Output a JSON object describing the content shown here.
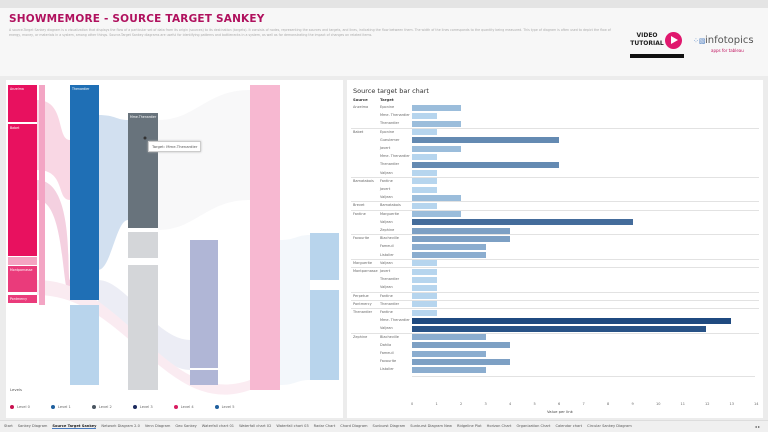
{
  "header": {
    "title": "SHOWMEMORE - SOURCE TARGET SANKEY",
    "description": "A source-Target Sankey diagram is a visualization that displays the flow of a particular set of data from its origin (sources) to its destination (targets). It consists of nodes, representing the sources and targets, and lines, indicating the flow between them. The width of the lines corresponds to the quantity being measured. This type of diagram is often used to depict the flow of energy, money, or materials in a system, among other things. Source-Target Sankey diagrams are useful for identifying patterns and bottlenecks in a system, as well as for demonstrating the impact of changes on related items.",
    "video_label_1": "VIDEO",
    "video_label_2": "TUTORIAL",
    "brand_name": "infotopics",
    "brand_tagline": "apps for tableau"
  },
  "sankey": {
    "nodes": [
      {
        "label": "Anzelma",
        "level": 0
      },
      {
        "label": "Babet",
        "level": 0
      },
      {
        "label": "Montparnasse",
        "level": 0
      },
      {
        "label": "Pontmercy",
        "level": 0
      },
      {
        "label": "Thenardier",
        "level": 1
      },
      {
        "label": "Mme.Thenardier",
        "level": 2
      }
    ],
    "tooltip": "Target: Mme.Thenardier",
    "legend": {
      "title": "Levels",
      "items": [
        {
          "label": "Level 0",
          "color": "#c8114f"
        },
        {
          "label": "Level 1",
          "color": "#1f5f9e"
        },
        {
          "label": "Level 2",
          "color": "#4a5560"
        },
        {
          "label": "Level 3",
          "color": "#1b2a5e"
        },
        {
          "label": "Level 4",
          "color": "#d81b60"
        },
        {
          "label": "Level 5",
          "color": "#1f5f9e"
        }
      ]
    }
  },
  "chart_data": {
    "type": "bar",
    "title": "Source target bar chart",
    "orientation": "horizontal",
    "columns": [
      "Source",
      "Target"
    ],
    "xlabel": "Value per link",
    "xlim": [
      0,
      14
    ],
    "ticks": [
      "0",
      "1",
      "2",
      "3",
      "4",
      "5",
      "6",
      "7",
      "8",
      "9",
      "10",
      "11",
      "12",
      "13",
      "14"
    ],
    "groups": [
      {
        "source": "Anzelma",
        "rows": [
          [
            "Eponine",
            2
          ],
          [
            "Mme. Thenardier",
            1
          ],
          [
            "Thenardier",
            2
          ]
        ]
      },
      {
        "source": "Babet",
        "rows": [
          [
            "Eponine",
            1
          ],
          [
            "Gueulemer",
            6
          ],
          [
            "Javert",
            2
          ],
          [
            "Mme. Thenardier",
            1
          ],
          [
            "Thenardier",
            6
          ],
          [
            "Valjean",
            1
          ]
        ]
      },
      {
        "source": "Bamatabois",
        "rows": [
          [
            "Fantine",
            1
          ],
          [
            "Javert",
            1
          ],
          [
            "Valjean",
            2
          ]
        ]
      },
      {
        "source": "Brevet",
        "rows": [
          [
            "Bamatabois",
            1
          ]
        ]
      },
      {
        "source": "Fantine",
        "rows": [
          [
            "Marguerite",
            2
          ],
          [
            "Valjean",
            9
          ],
          [
            "Zephine",
            4
          ]
        ]
      },
      {
        "source": "Favourite",
        "rows": [
          [
            "Blacheville",
            4
          ],
          [
            "Fameuil",
            3
          ],
          [
            "Listolier",
            3
          ]
        ]
      },
      {
        "source": "Marguerite",
        "rows": [
          [
            "Valjean",
            1
          ]
        ]
      },
      {
        "source": "Montparnasse",
        "rows": [
          [
            "Javert",
            1
          ],
          [
            "Thenardier",
            1
          ],
          [
            "Valjean",
            1
          ]
        ]
      },
      {
        "source": "Perpetue",
        "rows": [
          [
            "Fantine",
            1
          ]
        ]
      },
      {
        "source": "Pontmercy",
        "rows": [
          [
            "Thenardier",
            1
          ]
        ]
      },
      {
        "source": "Thenardier",
        "rows": [
          [
            "Fantine",
            1
          ],
          [
            "Mme. Thenardier",
            13
          ],
          [
            "Valjean",
            12
          ]
        ]
      },
      {
        "source": "Zephine",
        "rows": [
          [
            "Blacheville",
            3
          ],
          [
            "Dahlia",
            4
          ],
          [
            "Fameuil",
            3
          ],
          [
            "Favourite",
            4
          ],
          [
            "Listolier",
            3
          ]
        ]
      }
    ],
    "color_scale": [
      "#b6d5ee",
      "#1f4a80"
    ]
  },
  "tabs": [
    "Start",
    "Sankey Diagram",
    "Source Target Sankey",
    "Network Diagram 2.0",
    "Venn Diagram",
    "Geo Sankey",
    "Waterfall chart 01",
    "Waterfall chart 02",
    "Waterfall chart 03",
    "Radar Chart",
    "Chord Diagram",
    "Sunburst Diagram",
    "Sunburst Diagram New",
    "Ridgeline Plot",
    "Horizon Chart",
    "Organization Chart",
    "Calendar chart",
    "Circular Sankey Diagram"
  ],
  "active_tab": "Source Target Sankey",
  "tab_nav": "◂ ▸"
}
